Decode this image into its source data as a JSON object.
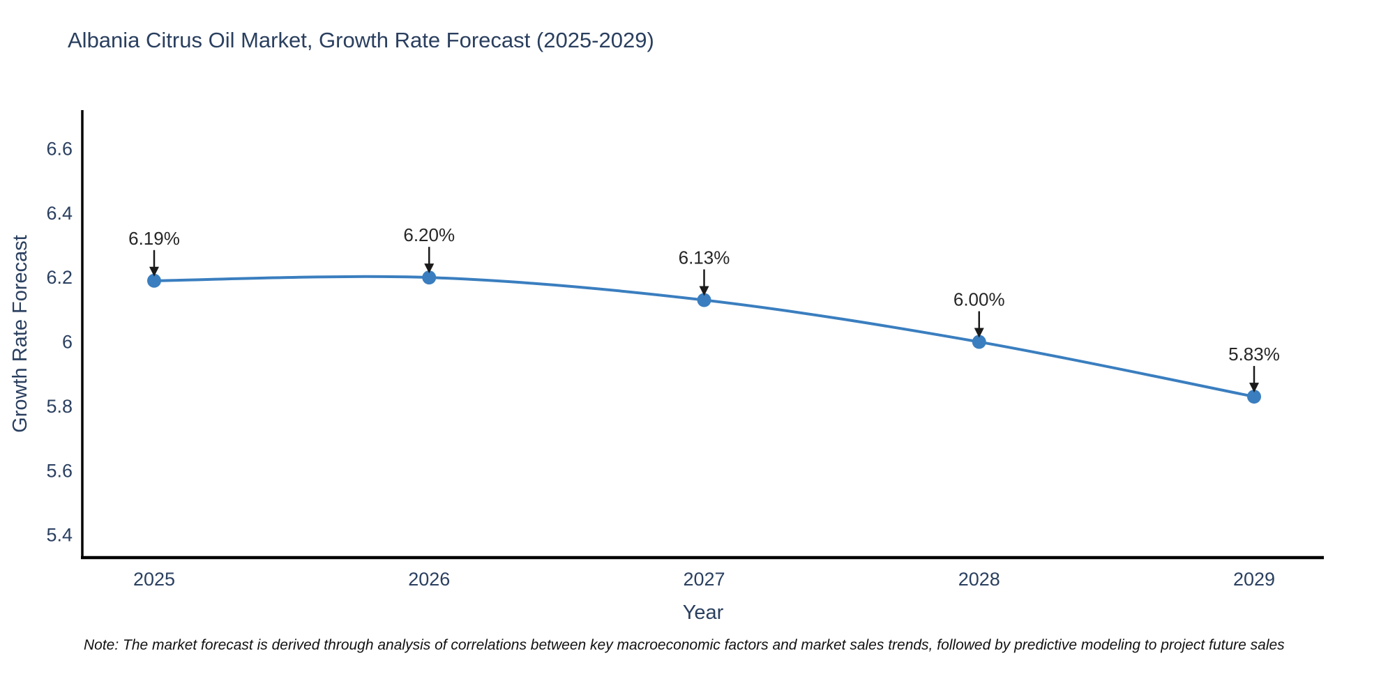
{
  "title": "Albania Citrus Oil Market, Growth Rate Forecast (2025-2029)",
  "note": "Note: The market forecast is derived through analysis of correlations between key macroeconomic factors and market sales trends, followed by predictive modeling to project future sales",
  "chart_data": {
    "type": "line",
    "title": "Albania Citrus Oil Market, Growth Rate Forecast (2025-2029)",
    "x": [
      "2025",
      "2026",
      "2027",
      "2028",
      "2029"
    ],
    "series": [
      {
        "name": "Growth Rate Forecast",
        "values": [
          6.19,
          6.2,
          6.13,
          6.0,
          5.83
        ]
      }
    ],
    "point_labels": [
      "6.19%",
      "6.20%",
      "6.13%",
      "6.00%",
      "5.83%"
    ],
    "xlabel": "Year",
    "ylabel": "Growth Rate Forecast",
    "y_ticks": [
      5.4,
      5.6,
      5.8,
      6,
      6.2,
      6.4,
      6.6
    ],
    "y_tick_labels": [
      "5.4",
      "5.6",
      "5.8",
      "6",
      "6.2",
      "6.4",
      "6.6"
    ],
    "ylim": [
      5.33,
      6.72
    ],
    "grid": false,
    "legend": "none",
    "line_shape": "spline",
    "marker": "circle",
    "annotation_arrows": "down-to-point",
    "colors": {
      "line": "#3a7ebf",
      "marker": "#3a7ebf",
      "axis": "#000000",
      "text": "#2a3f5f",
      "annotation": "#1a1a1a",
      "background": "#ffffff"
    }
  }
}
